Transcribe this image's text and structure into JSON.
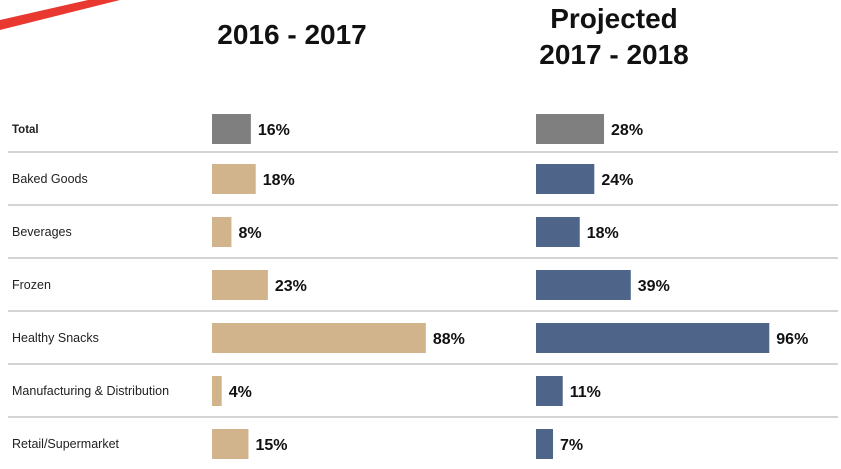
{
  "chart_data": {
    "type": "bar",
    "orientation": "horizontal",
    "categories": [
      "Total",
      "Baked Goods",
      "Beverages",
      "Frozen",
      "Healthy Snacks",
      "Manufacturing & Distribution",
      "Retail/Supermarket"
    ],
    "series": [
      {
        "name": "2016 - 2017",
        "title_lines": [
          "2016 - 2017"
        ],
        "values": [
          16,
          18,
          8,
          23,
          88,
          4,
          15
        ],
        "labels": [
          "16%",
          "18%",
          "8%",
          "23%",
          "88%",
          "4%",
          "15%"
        ]
      },
      {
        "name": "Projected 2017 - 2018",
        "title_lines": [
          "Projected",
          "2017 - 2018"
        ],
        "values": [
          28,
          24,
          18,
          39,
          96,
          11,
          7
        ],
        "labels": [
          "28%",
          "24%",
          "18%",
          "39%",
          "96%",
          "11%",
          "7%"
        ]
      }
    ],
    "unit": "%",
    "xlim": [
      0,
      100
    ],
    "grid": false,
    "legend": "none",
    "colors": {
      "total": "#7f7f7f",
      "series_1": "#d2b48c",
      "series_2": "#4e6589",
      "divider": "#a8a8a8",
      "accent": "#e8382f"
    }
  }
}
